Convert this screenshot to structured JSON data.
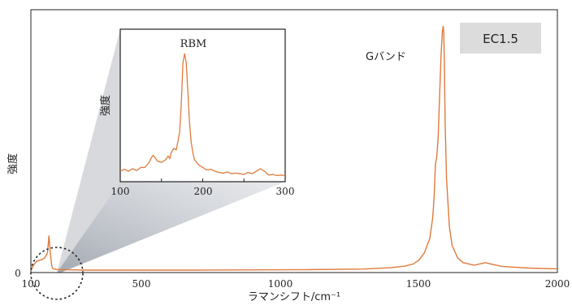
{
  "chart_data": [
    {
      "type": "line",
      "xlabel": "ラマンシフト/cm⁻¹",
      "ylabel": "強度",
      "xlim": [
        100,
        2000
      ],
      "xticks": [
        "100",
        "500",
        "1000",
        "1500",
        "2000"
      ],
      "y_zero_label": "0",
      "annotations": {
        "g_band": "Gバンド",
        "sample": "EC1.5"
      },
      "series": [
        {
          "color": "#e07a3c",
          "x": [
            100,
            110,
            120,
            130,
            140,
            150,
            160,
            165,
            170,
            175,
            178,
            180,
            185,
            190,
            200,
            220,
            250,
            300,
            400,
            500,
            700,
            900,
            1100,
            1300,
            1400,
            1450,
            1480,
            1500,
            1520,
            1540,
            1550,
            1555,
            1560,
            1565,
            1570,
            1575,
            1580,
            1585,
            1588,
            1590,
            1592,
            1595,
            1600,
            1610,
            1620,
            1640,
            1660,
            1700,
            1740,
            1760,
            1800,
            1900,
            2000
          ],
          "y": [
            0.01,
            0.03,
            0.045,
            0.05,
            0.052,
            0.06,
            0.08,
            0.15,
            0.08,
            0.03,
            0.02,
            0.015,
            0.014,
            0.013,
            0.012,
            0.012,
            0.011,
            0.01,
            0.01,
            0.01,
            0.01,
            0.011,
            0.012,
            0.014,
            0.02,
            0.026,
            0.035,
            0.05,
            0.08,
            0.14,
            0.22,
            0.3,
            0.44,
            0.47,
            0.55,
            0.72,
            0.88,
            0.98,
            1.0,
            0.97,
            0.85,
            0.6,
            0.38,
            0.19,
            0.11,
            0.06,
            0.04,
            0.03,
            0.04,
            0.035,
            0.025,
            0.018,
            0.015
          ]
        }
      ]
    },
    {
      "type": "line",
      "title": "RBM",
      "ylabel": "強度",
      "xlim": [
        100,
        300
      ],
      "xticks": [
        "100",
        "200",
        "300"
      ],
      "series": [
        {
          "color": "#e07a3c",
          "x": [
            100,
            105,
            110,
            115,
            120,
            125,
            130,
            135,
            138,
            140,
            142,
            145,
            150,
            155,
            158,
            160,
            162,
            165,
            168,
            170,
            172,
            174,
            176,
            178,
            180,
            182,
            184,
            186,
            188,
            190,
            195,
            200,
            205,
            210,
            215,
            220,
            225,
            230,
            235,
            240,
            245,
            250,
            255,
            260,
            265,
            270,
            275,
            280,
            285,
            290,
            295,
            300
          ],
          "y": [
            0.07,
            0.085,
            0.07,
            0.09,
            0.075,
            0.1,
            0.1,
            0.14,
            0.18,
            0.195,
            0.18,
            0.15,
            0.14,
            0.16,
            0.19,
            0.17,
            0.22,
            0.25,
            0.24,
            0.31,
            0.38,
            0.6,
            0.92,
            1.0,
            0.93,
            0.7,
            0.45,
            0.3,
            0.22,
            0.16,
            0.12,
            0.1,
            0.08,
            0.085,
            0.07,
            0.06,
            0.055,
            0.065,
            0.05,
            0.055,
            0.05,
            0.045,
            0.06,
            0.05,
            0.07,
            0.09,
            0.07,
            0.04,
            0.045,
            0.035,
            0.04,
            0.035
          ]
        }
      ]
    }
  ]
}
